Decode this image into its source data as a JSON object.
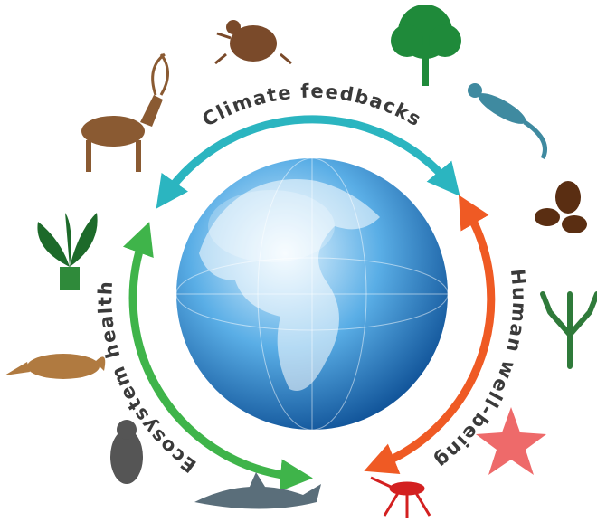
{
  "labels": {
    "top": "Climate feedbacks",
    "right": "Human well-being",
    "left": "Ecosystem health"
  }
}
